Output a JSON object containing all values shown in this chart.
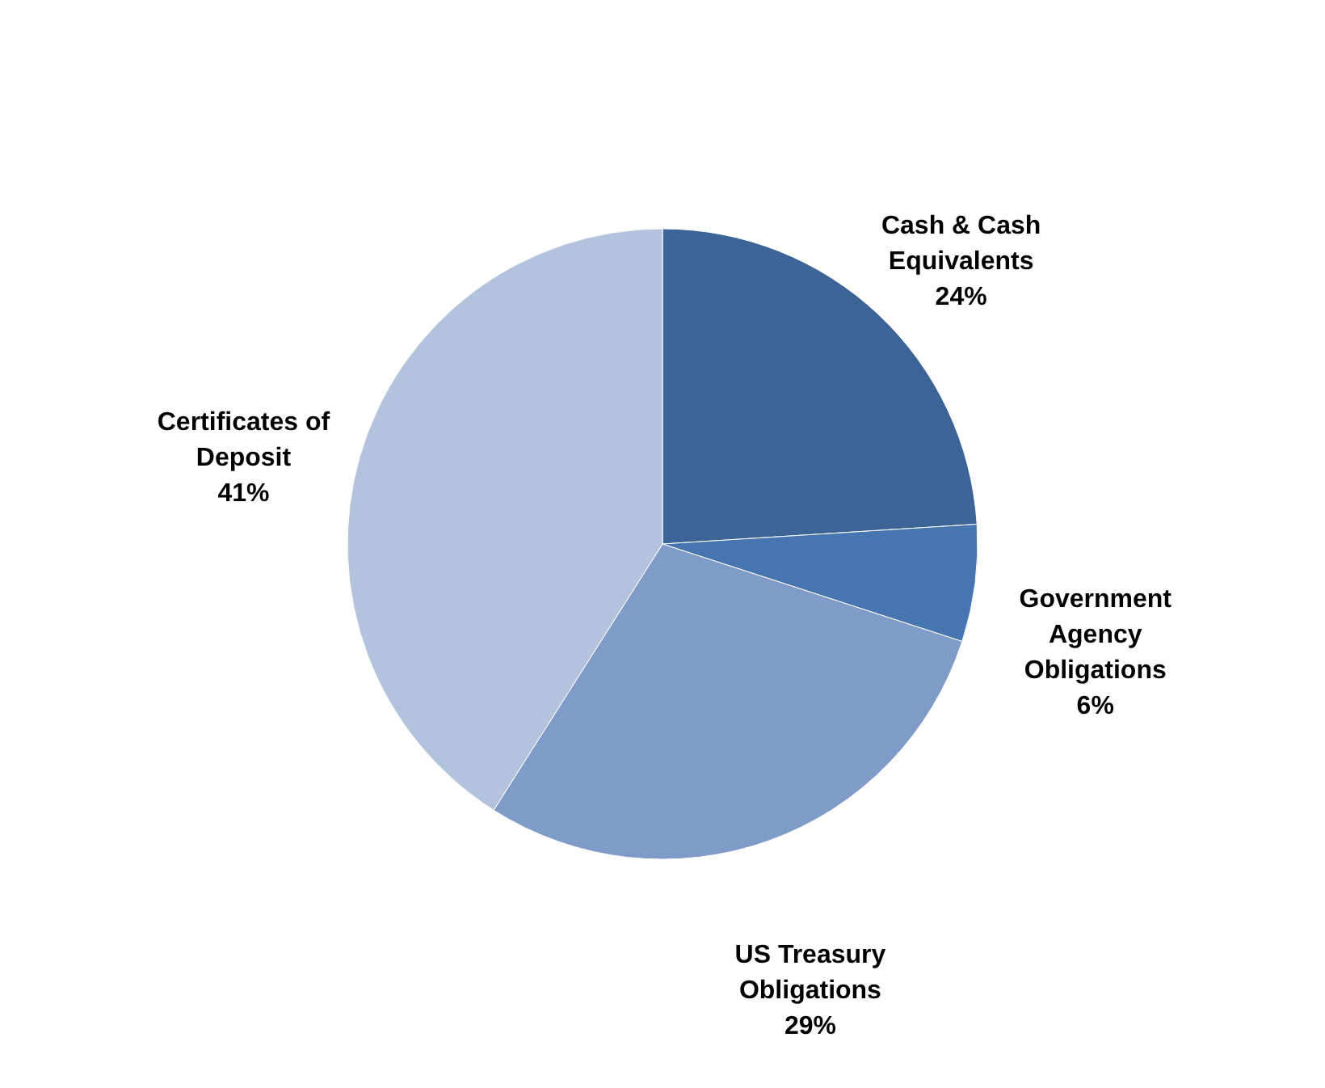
{
  "chart_data": {
    "type": "pie",
    "categories": [
      "Cash & Cash Equivalents",
      "Government Agency Obligations",
      "US Treasury Obligations",
      "Certificates of Deposit"
    ],
    "values": [
      24,
      6,
      29,
      41
    ],
    "colors": [
      "#3c6496",
      "#4675b0",
      "#7f9bc8",
      "#b4c3dd"
    ],
    "value_labels": [
      "24%",
      "6%",
      "29%",
      "41%"
    ]
  }
}
